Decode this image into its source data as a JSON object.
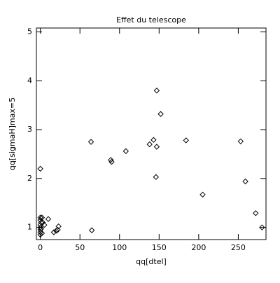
{
  "chart_data": {
    "type": "scatter",
    "title": "Effet du telescope",
    "x_label": "qq[dtel]",
    "y_label": "qq[sigmaH]max=5",
    "x": [
      0,
      0,
      0,
      1,
      0,
      0,
      0,
      0,
      0,
      2,
      3,
      5,
      1,
      2,
      10,
      17,
      22,
      23,
      20,
      64,
      65,
      89,
      90,
      108,
      138,
      143,
      147,
      147,
      152,
      146,
      184,
      205,
      253,
      259,
      272,
      280
    ],
    "y": [
      2.2,
      1.2,
      1.15,
      1.1,
      1.05,
      1.0,
      0.95,
      0.9,
      0.85,
      1.2,
      1.1,
      1.05,
      0.97,
      0.88,
      1.17,
      0.9,
      0.95,
      1.02,
      0.93,
      2.75,
      0.94,
      2.38,
      2.34,
      2.56,
      2.7,
      2.79,
      3.8,
      2.65,
      3.32,
      2.03,
      2.78,
      1.67,
      2.76,
      1.94,
      1.29,
      1.0
    ],
    "color": "#000000",
    "xlim": [
      -5,
      285
    ],
    "ylim": [
      0.75,
      5.08
    ],
    "xticks": [
      0,
      50,
      100,
      150,
      200,
      250
    ],
    "yticks": [
      1,
      2,
      3,
      4,
      5
    ]
  }
}
